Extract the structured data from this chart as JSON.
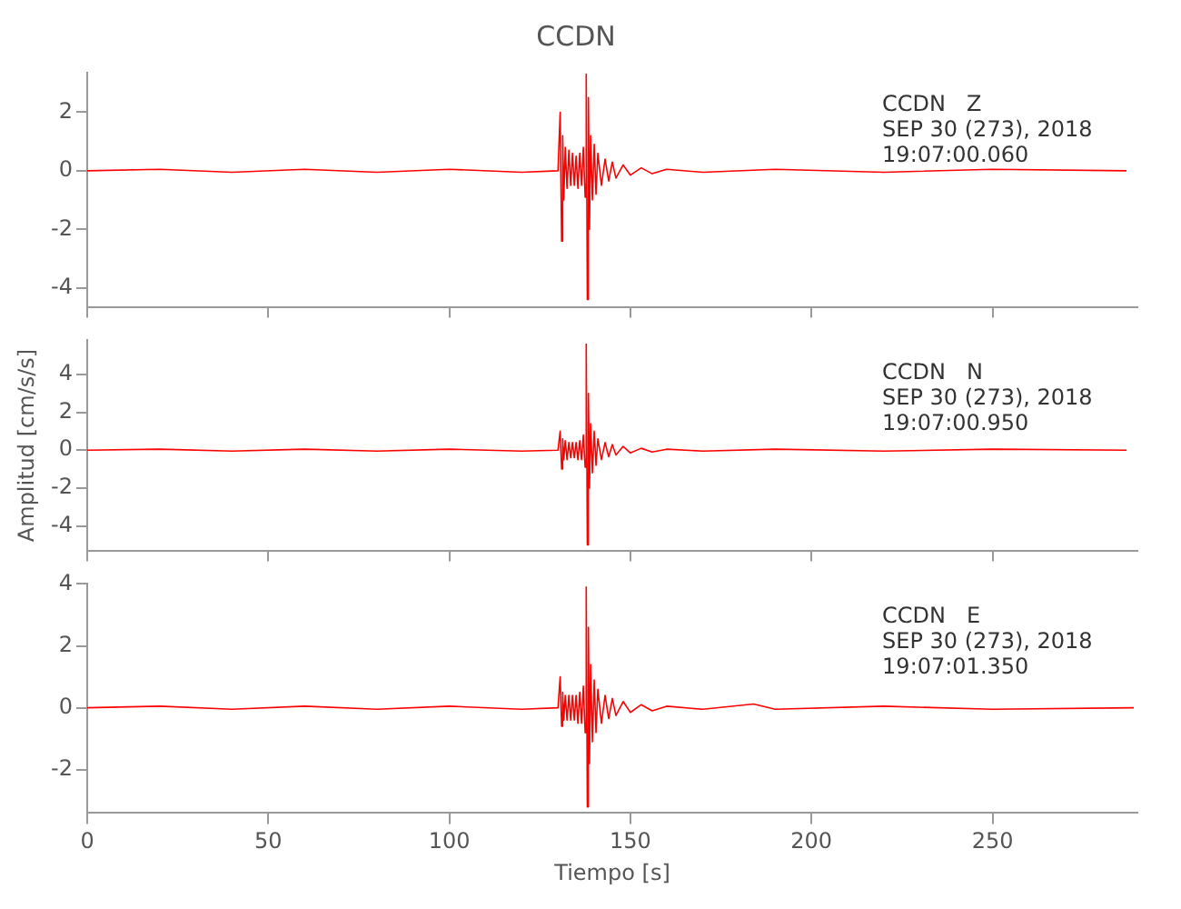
{
  "chart_data": [
    {
      "type": "line",
      "title": "CCDN",
      "annotations": [
        "CCDN   Z",
        "SEP 30 (273), 2018",
        "19:07:00.060"
      ],
      "xlim": [
        0,
        290
      ],
      "xticks": [
        0,
        50,
        100,
        150,
        200,
        250
      ],
      "ylim": [
        -4.65,
        3.35
      ],
      "yticks": [
        -4,
        -2,
        0,
        2
      ],
      "tick_labels": "y",
      "series": [
        {
          "color": "#ff0000",
          "x": [
            0,
            20,
            40,
            60,
            80,
            100,
            120,
            130,
            130.6,
            131,
            131.3,
            131.6,
            132,
            132.5,
            133,
            133.5,
            134,
            134.5,
            135,
            135.5,
            136,
            136.5,
            137,
            137.5,
            137.8,
            138.1,
            138.4,
            138.7,
            139,
            139.5,
            140,
            140.5,
            141,
            142,
            143,
            144,
            145,
            146,
            148,
            150,
            153,
            156,
            160,
            170,
            190,
            220,
            250,
            287
          ],
          "values": [
            0,
            0.05,
            -0.05,
            0.05,
            -0.05,
            0.05,
            -0.05,
            0,
            2.0,
            -2.4,
            1.2,
            -1.0,
            0.8,
            -0.6,
            0.7,
            -0.5,
            0.6,
            -0.5,
            0.5,
            -0.6,
            0.6,
            -0.5,
            0.8,
            -0.9,
            3.3,
            -4.4,
            2.5,
            -2.0,
            1.2,
            -1.0,
            0.9,
            -0.8,
            0.6,
            -0.5,
            0.4,
            -0.35,
            0.3,
            -0.25,
            0.2,
            -0.15,
            0.1,
            -0.1,
            0.05,
            -0.05,
            0.05,
            -0.05,
            0.05,
            0
          ]
        }
      ]
    },
    {
      "type": "line",
      "ylabel": "Amplitud [cm/s/s]",
      "annotations": [
        "CCDN   N",
        "SEP 30 (273), 2018",
        "19:07:00.950"
      ],
      "xlim": [
        0,
        290
      ],
      "xticks": [
        0,
        50,
        100,
        150,
        200,
        250
      ],
      "ylim": [
        -5.3,
        5.8
      ],
      "yticks": [
        -4,
        -2,
        0,
        2,
        4
      ],
      "tick_labels": "y",
      "series": [
        {
          "color": "#ff0000",
          "x": [
            0,
            20,
            40,
            60,
            80,
            100,
            120,
            130,
            130.6,
            131,
            131.3,
            131.6,
            132,
            132.5,
            133,
            133.5,
            134,
            134.5,
            135,
            135.5,
            136,
            136.5,
            137,
            137.5,
            137.8,
            138.1,
            138.4,
            138.7,
            139,
            139.5,
            140,
            140.5,
            141,
            142,
            143,
            144,
            145,
            146,
            148,
            150,
            153,
            156,
            160,
            170,
            190,
            220,
            250,
            287
          ],
          "values": [
            0,
            0.05,
            -0.05,
            0.05,
            -0.05,
            0.05,
            -0.05,
            0,
            1.0,
            -1.0,
            0.6,
            -0.5,
            0.5,
            -0.5,
            0.4,
            -0.4,
            0.4,
            -0.4,
            0.4,
            -0.5,
            0.5,
            -0.5,
            0.8,
            -0.9,
            5.6,
            -5.0,
            3.0,
            -2.0,
            1.4,
            -1.2,
            1.0,
            -0.8,
            0.6,
            -0.5,
            0.4,
            -0.35,
            0.3,
            -0.25,
            0.2,
            -0.15,
            0.1,
            -0.1,
            0.05,
            -0.05,
            0.05,
            -0.05,
            0.05,
            0
          ]
        }
      ]
    },
    {
      "type": "line",
      "xlabel": "Tiempo [s]",
      "annotations": [
        "CCDN   E",
        "SEP 30 (273), 2018",
        "19:07:01.350"
      ],
      "xlim": [
        0,
        290
      ],
      "xticks": [
        0,
        50,
        100,
        150,
        200,
        250
      ],
      "ylim": [
        -3.4,
        4
      ],
      "yticks": [
        -2,
        0,
        2,
        4
      ],
      "series": [
        {
          "color": "#ff0000",
          "x": [
            0,
            20,
            40,
            60,
            80,
            100,
            120,
            130,
            130.6,
            131,
            131.3,
            131.6,
            132,
            132.5,
            133,
            133.5,
            134,
            134.5,
            135,
            135.5,
            136,
            136.5,
            137,
            137.5,
            137.8,
            138.1,
            138.4,
            138.7,
            139,
            139.5,
            140,
            140.5,
            141,
            142,
            143,
            144,
            145,
            146,
            148,
            150,
            153,
            156,
            160,
            170,
            184,
            190,
            220,
            250,
            289
          ],
          "values": [
            0,
            0.05,
            -0.05,
            0.05,
            -0.05,
            0.05,
            -0.05,
            0,
            1.0,
            -0.6,
            0.5,
            -0.4,
            0.4,
            -0.4,
            0.4,
            -0.4,
            0.4,
            -0.4,
            0.4,
            -0.5,
            0.5,
            -0.5,
            0.7,
            -0.8,
            3.9,
            -3.2,
            2.6,
            -1.8,
            1.4,
            -1.1,
            0.9,
            -0.8,
            0.6,
            -0.5,
            0.4,
            -0.35,
            0.3,
            -0.25,
            0.2,
            -0.15,
            0.1,
            -0.1,
            0.05,
            -0.05,
            0.12,
            -0.05,
            0.05,
            -0.05,
            0
          ]
        }
      ]
    }
  ]
}
